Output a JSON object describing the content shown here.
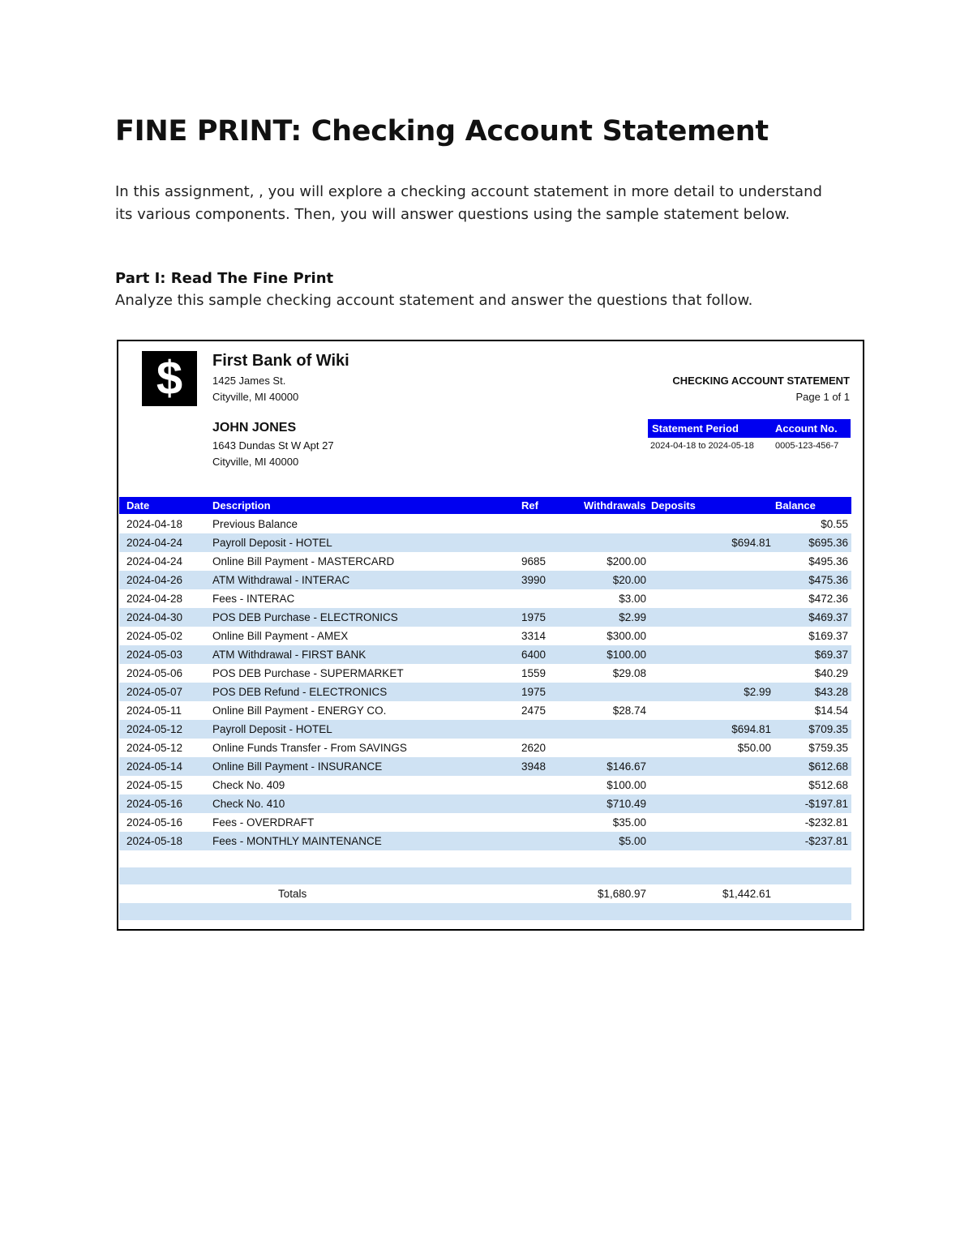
{
  "header": {
    "title": "FINE PRINT: Checking Account Statement"
  },
  "intro": "In this assignment, , you will explore a checking account statement in more detail to understand its various components. Then, you will answer questions using the sample statement below.",
  "part1": {
    "heading": "Part I: Read The Fine Print",
    "text": "Analyze this sample checking account statement and answer the questions that follow."
  },
  "statement": {
    "logo": "$",
    "bank": {
      "name": "First Bank of Wiki",
      "address": [
        "1425 James St.",
        "Cityville, MI 40000"
      ]
    },
    "doc_title": "CHECKING ACCOUNT STATEMENT",
    "page": "Page 1 of 1",
    "customer": {
      "name": "JOHN JONES",
      "address": [
        "1643 Dundas St W Apt 27",
        "Cityville, MI 40000"
      ]
    },
    "info": {
      "headers": [
        "Statement Period",
        "Account No."
      ],
      "values": [
        "2024-04-18 to 2024-05-18",
        "0005-123-456-7"
      ]
    },
    "table": {
      "headers": [
        "Date",
        "Description",
        "Ref",
        "Withdrawals",
        "Deposits",
        "Balance"
      ],
      "rows": [
        [
          "2024-04-18",
          "Previous Balance",
          null,
          null,
          null,
          "$0.55"
        ],
        [
          "2024-04-24",
          "Payroll Deposit - HOTEL",
          null,
          null,
          "$694.81",
          "$695.36"
        ],
        [
          "2024-04-24",
          "Online Bill Payment - MASTERCARD",
          "9685",
          "$200.00",
          null,
          "$495.36"
        ],
        [
          "2024-04-26",
          "ATM Withdrawal - INTERAC",
          "3990",
          "$20.00",
          null,
          "$475.36"
        ],
        [
          "2024-04-28",
          "Fees - INTERAC",
          null,
          "$3.00",
          null,
          "$472.36"
        ],
        [
          "2024-04-30",
          "POS DEB Purchase - ELECTRONICS",
          "1975",
          "$2.99",
          null,
          "$469.37"
        ],
        [
          "2024-05-02",
          "Online Bill Payment - AMEX",
          "3314",
          "$300.00",
          null,
          "$169.37"
        ],
        [
          "2024-05-03",
          "ATM Withdrawal - FIRST BANK",
          "6400",
          "$100.00",
          null,
          "$69.37"
        ],
        [
          "2024-05-06",
          "POS DEB Purchase - SUPERMARKET",
          "1559",
          "$29.08",
          null,
          "$40.29"
        ],
        [
          "2024-05-07",
          "POS DEB Refund - ELECTRONICS",
          "1975",
          null,
          "$2.99",
          "$43.28"
        ],
        [
          "2024-05-11",
          "Online Bill Payment - ENERGY CO.",
          "2475",
          "$28.74",
          null,
          "$14.54"
        ],
        [
          "2024-05-12",
          "Payroll Deposit - HOTEL",
          null,
          null,
          "$694.81",
          "$709.35"
        ],
        [
          "2024-05-12",
          "Online Funds Transfer - From SAVINGS",
          "2620",
          null,
          "$50.00",
          "$759.35"
        ],
        [
          "2024-05-14",
          "Online Bill Payment - INSURANCE",
          "3948",
          "$146.67",
          null,
          "$612.68"
        ],
        [
          "2024-05-15",
          "Check No. 409",
          null,
          "$100.00",
          null,
          "$512.68"
        ],
        [
          "2024-05-16",
          "Check No. 410",
          null,
          "$710.49",
          null,
          "-$197.81"
        ],
        [
          "2024-05-16",
          "Fees - OVERDRAFT",
          null,
          "$35.00",
          null,
          "-$232.81"
        ],
        [
          "2024-05-18",
          "Fees - MONTHLY MAINTENANCE",
          null,
          "$5.00",
          null,
          "-$237.81"
        ]
      ],
      "totals": {
        "label": "Totals",
        "withdrawals": "$1,680.97",
        "deposits": "$1,442.61"
      }
    }
  }
}
